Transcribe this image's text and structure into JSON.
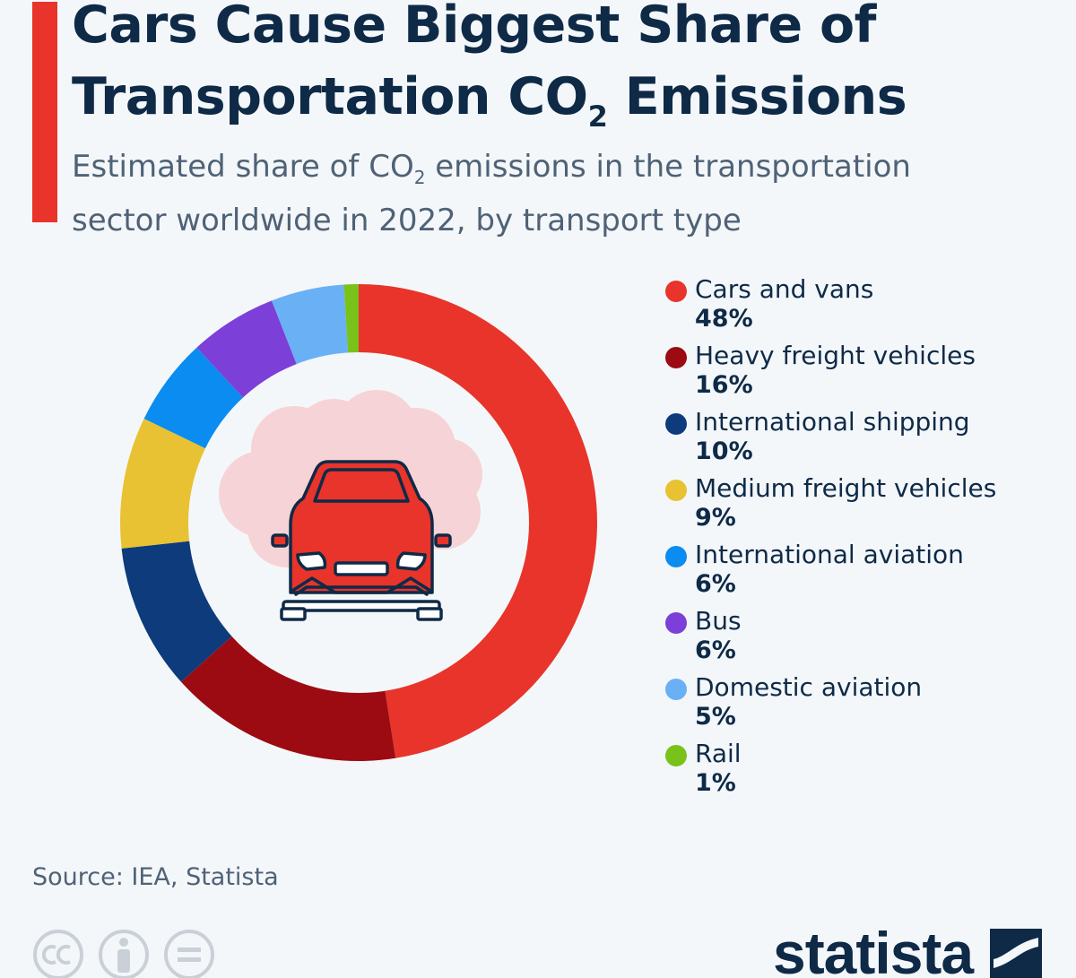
{
  "header": {
    "title_line1": "Cars Cause Biggest Share of",
    "title_line2_pre": "Transportation CO",
    "title_line2_sub": "2",
    "title_line2_post": " Emissions",
    "subtitle_pre": "Estimated share of CO",
    "subtitle_sub": "2",
    "subtitle_post": " emissions in the transportation sector worldwide in 2022, by transport type"
  },
  "chart_data": {
    "type": "pie",
    "style": "donut",
    "categories": [
      "Cars and vans",
      "Heavy freight vehicles",
      "International shipping",
      "Medium freight vehicles",
      "International aviation",
      "Bus",
      "Domestic aviation",
      "Rail"
    ],
    "values": [
      48,
      16,
      10,
      9,
      6,
      6,
      5,
      1
    ],
    "value_labels": [
      "48%",
      "16%",
      "10%",
      "9%",
      "6%",
      "6%",
      "5%",
      "1%"
    ],
    "colors": [
      "#e8342a",
      "#9c0b12",
      "#0d3b7c",
      "#e8c232",
      "#0a8cf0",
      "#7c3fd8",
      "#69b0f5",
      "#78c21a"
    ],
    "legend_position": "right",
    "center_icon": "car-with-exhaust-cloud-icon"
  },
  "footer": {
    "source": "Source: IEA, Statista",
    "license_icons": [
      "cc-icon",
      "attribution-icon",
      "no-derivatives-icon"
    ],
    "logo_text": "statista"
  }
}
